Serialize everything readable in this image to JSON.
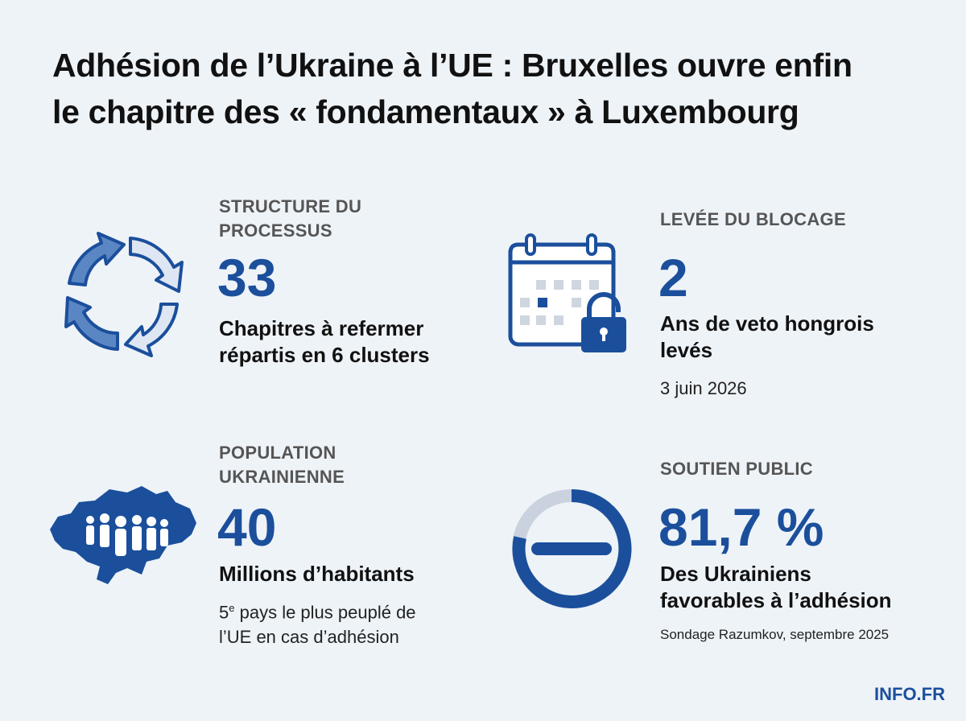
{
  "title": [
    "Adhésion de l’Ukraine à l’UE : Bruxelles ouvre enfin",
    "le chapitre des « fondamentaux » à Luxembourg"
  ],
  "stats": [
    {
      "label": [
        "STRUCTURE DU",
        "PROCESSUS"
      ],
      "value": "33",
      "description": [
        "Chapitres à refermer",
        "répartis en 6 clusters"
      ]
    },
    {
      "label": [
        "LEVÉE DU BLOCAGE"
      ],
      "value": "2",
      "description": [
        "Ans de veto hongrois",
        "levés"
      ],
      "note": "3 juin 2026"
    },
    {
      "label": [
        "POPULATION",
        "UKRAINIENNE"
      ],
      "value": "40",
      "description": [
        "Millions d’habitants"
      ],
      "note": {
        "number": "5",
        "suffix": "e",
        "text": [
          "pays le plus peuplé de",
          "l’UE en cas d’adhésion"
        ]
      }
    },
    {
      "label": [
        "SOUTIEN PUBLIC"
      ],
      "value": "81,7 %",
      "description": [
        "Des Ukrainiens",
        "favorables à l’adhésion"
      ],
      "source": "Sondage Razumkov, septembre 2025"
    }
  ],
  "brand": "INFO.FR"
}
